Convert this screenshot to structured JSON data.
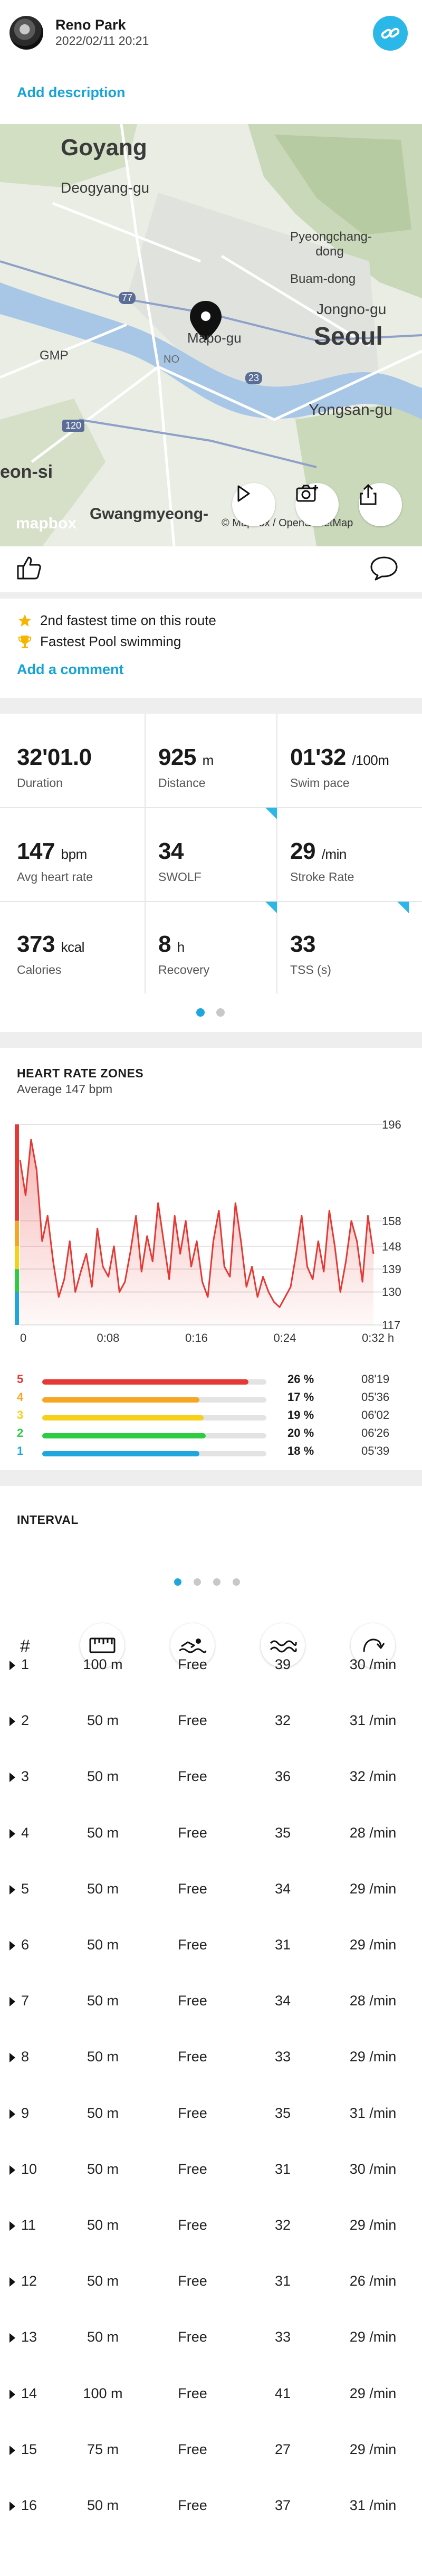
{
  "header": {
    "user_name": "Reno Park",
    "date": "2022/02/11 20:21",
    "add_description": "Add description"
  },
  "map": {
    "labels": [
      "Goyang",
      "Deogyang-gu",
      "Pyeongchang-dong",
      "Buam-dong",
      "Jongno-gu",
      "Seoul",
      "Mapo-gu",
      "GMP",
      "120",
      "77",
      "23",
      "Yongsan-gu",
      "eon-si",
      "Gwangmyeong-",
      "NO"
    ],
    "attribution": "mapbox",
    "copyright": "© Mapbox / OpenStreetMap"
  },
  "social": {
    "achievements": [
      {
        "icon": "star-icon",
        "text": "2nd fastest time on this route"
      },
      {
        "icon": "trophy-icon",
        "text": "Fastest Pool swimming"
      }
    ],
    "add_comment": "Add a comment"
  },
  "stats": [
    {
      "value": "32'01.0",
      "unit": "",
      "label": "Duration"
    },
    {
      "value": "925",
      "unit": "m",
      "label": "Distance"
    },
    {
      "value": "01'32",
      "unit": "/100m",
      "label": "Swim pace"
    },
    {
      "value": "147",
      "unit": "bpm",
      "label": "Avg heart rate"
    },
    {
      "value": "34",
      "unit": "",
      "label": "SWOLF"
    },
    {
      "value": "29",
      "unit": "/min",
      "label": "Stroke Rate"
    },
    {
      "value": "373",
      "unit": "kcal",
      "label": "Calories"
    },
    {
      "value": "8",
      "unit": "h",
      "label": "Recovery"
    },
    {
      "value": "33",
      "unit": "",
      "label": "TSS (s)"
    }
  ],
  "heart_rate": {
    "title": "HEART RATE ZONES",
    "subtitle": "Average 147 bpm",
    "zones": [
      {
        "zone": "5",
        "pct": "26 %",
        "fraction": 0.92,
        "time": "08'19",
        "color": "#e53935"
      },
      {
        "zone": "4",
        "pct": "17 %",
        "fraction": 0.7,
        "time": "05'36",
        "color": "#f5a623"
      },
      {
        "zone": "3",
        "pct": "19 %",
        "fraction": 0.72,
        "time": "06'02",
        "color": "#f7d117"
      },
      {
        "zone": "2",
        "pct": "20 %",
        "fraction": 0.73,
        "time": "06'26",
        "color": "#2ecc40"
      },
      {
        "zone": "1",
        "pct": "18 %",
        "fraction": 0.7,
        "time": "05'39",
        "color": "#1ea7dc"
      }
    ]
  },
  "chart_data": {
    "type": "area",
    "title": "HEART RATE ZONES",
    "xlabel": "",
    "ylabel": "",
    "x_ticks": [
      "0",
      "0:08",
      "0:16",
      "0:24",
      "0:32 h"
    ],
    "y_ticks": [
      196,
      158,
      148,
      139,
      130,
      117
    ],
    "ylim": [
      117,
      196
    ],
    "xlim": [
      0,
      32
    ],
    "x": [
      0,
      0.5,
      1,
      1.5,
      2,
      2.5,
      3,
      3.5,
      4,
      4.5,
      5,
      5.5,
      6,
      6.5,
      7,
      7.5,
      8,
      8.5,
      9,
      9.5,
      10,
      10.5,
      11,
      11.5,
      12,
      12.5,
      13,
      13.5,
      14,
      14.5,
      15,
      15.5,
      16,
      16.5,
      17,
      17.5,
      18,
      18.5,
      19,
      19.5,
      20,
      20.5,
      21,
      21.5,
      22,
      22.5,
      23,
      23.5,
      24,
      24.5,
      25,
      25.5,
      26,
      26.5,
      27,
      27.5,
      28,
      28.5,
      29,
      29.5,
      30,
      30.5,
      31,
      31.5,
      32
    ],
    "series": [
      {
        "values": [
          182,
          168,
          190,
          178,
          150,
          160,
          142,
          128,
          135,
          150,
          130,
          138,
          145,
          132,
          155,
          140,
          136,
          148,
          130,
          134,
          146,
          160,
          138,
          152,
          142,
          165,
          150,
          135,
          160,
          145,
          158,
          140,
          150,
          134,
          128,
          150,
          162,
          140,
          136,
          165,
          150,
          132,
          140,
          128,
          136,
          130,
          126,
          124,
          128,
          132,
          145,
          160,
          140,
          135,
          150,
          138,
          162,
          148,
          130,
          142,
          158,
          150,
          134,
          160,
          145
        ],
        "color": "#e53935"
      }
    ],
    "grid": true,
    "legend": "none"
  },
  "interval": {
    "title": "INTERVAL",
    "col_hash": "#",
    "col_icons": [
      "lane-distance-icon",
      "swim-style-icon",
      "swolf-waves-icon",
      "stroke-rate-icon"
    ],
    "rows": [
      {
        "n": "1",
        "dist": "100 m",
        "style": "Free",
        "swolf": "39",
        "rate": "30 /min"
      },
      {
        "n": "2",
        "dist": "50 m",
        "style": "Free",
        "swolf": "32",
        "rate": "31 /min"
      },
      {
        "n": "3",
        "dist": "50 m",
        "style": "Free",
        "swolf": "36",
        "rate": "32 /min"
      },
      {
        "n": "4",
        "dist": "50 m",
        "style": "Free",
        "swolf": "35",
        "rate": "28 /min"
      },
      {
        "n": "5",
        "dist": "50 m",
        "style": "Free",
        "swolf": "34",
        "rate": "29 /min"
      },
      {
        "n": "6",
        "dist": "50 m",
        "style": "Free",
        "swolf": "31",
        "rate": "29 /min"
      },
      {
        "n": "7",
        "dist": "50 m",
        "style": "Free",
        "swolf": "34",
        "rate": "28 /min"
      },
      {
        "n": "8",
        "dist": "50 m",
        "style": "Free",
        "swolf": "33",
        "rate": "29 /min"
      },
      {
        "n": "9",
        "dist": "50 m",
        "style": "Free",
        "swolf": "35",
        "rate": "31 /min"
      },
      {
        "n": "10",
        "dist": "50 m",
        "style": "Free",
        "swolf": "31",
        "rate": "30 /min"
      },
      {
        "n": "11",
        "dist": "50 m",
        "style": "Free",
        "swolf": "32",
        "rate": "29 /min"
      },
      {
        "n": "12",
        "dist": "50 m",
        "style": "Free",
        "swolf": "31",
        "rate": "26 /min"
      },
      {
        "n": "13",
        "dist": "50 m",
        "style": "Free",
        "swolf": "33",
        "rate": "29 /min"
      },
      {
        "n": "14",
        "dist": "100 m",
        "style": "Free",
        "swolf": "41",
        "rate": "29 /min"
      },
      {
        "n": "15",
        "dist": "75 m",
        "style": "Free",
        "swolf": "27",
        "rate": "29 /min"
      },
      {
        "n": "16",
        "dist": "50 m",
        "style": "Free",
        "swolf": "37",
        "rate": "31 /min"
      }
    ]
  },
  "colors": {
    "accent": "#16a3d6",
    "badge": "#2bb8e8",
    "hr_line": "#e53935",
    "divider": "#eeeeee"
  }
}
